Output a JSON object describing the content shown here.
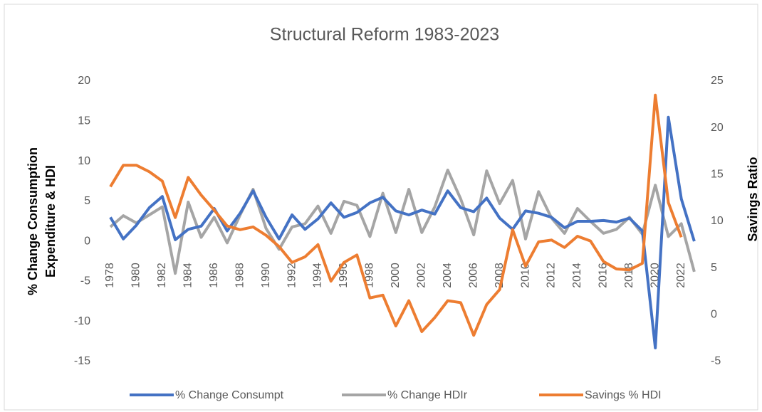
{
  "chart_data": {
    "type": "line",
    "title": "Structural Reform 1983-2023",
    "ylabel": [
      "% Change  Consumption",
      "Expenditure & HDI"
    ],
    "y2label": "Savings Ratio",
    "categories": [
      "1978",
      null,
      "1980",
      null,
      "1982",
      null,
      "1984",
      null,
      "1986",
      null,
      "1988",
      null,
      "1990",
      null,
      "1992",
      null,
      "1994",
      null,
      "1996",
      null,
      "1998",
      null,
      "2000",
      null,
      "2002",
      null,
      "2004",
      null,
      "2006",
      null,
      "2008",
      null,
      "2010",
      null,
      "2012",
      null,
      "2014",
      null,
      "2016",
      null,
      "2018",
      null,
      "2020",
      null,
      "2022",
      null
    ],
    "series": [
      {
        "name": "% Change Consumpt",
        "color": "#4472c4",
        "values": [
          3.0,
          0.3,
          2.0,
          4.2,
          5.6,
          0.2,
          1.5,
          1.9,
          4.1,
          1.3,
          3.5,
          6.3,
          3.0,
          0.3,
          3.3,
          1.5,
          2.8,
          4.8,
          3.0,
          3.6,
          4.8,
          5.5,
          3.8,
          3.3,
          3.9,
          3.4,
          6.3,
          4.2,
          3.7,
          5.4,
          2.9,
          1.5,
          3.8,
          3.5,
          3.0,
          1.7,
          2.5,
          2.5,
          2.6,
          2.4,
          2.9,
          1.3,
          -13.3,
          15.5,
          5.3,
          0.0
        ]
      },
      {
        "name": "% Change HDIr",
        "color": "#a5a5a5",
        "values": [
          1.8,
          3.2,
          2.3,
          3.3,
          4.3,
          -4.0,
          4.9,
          0.5,
          3.0,
          -0.2,
          3.3,
          6.5,
          1.6,
          -1.0,
          1.8,
          2.2,
          4.4,
          1.0,
          5.0,
          4.5,
          0.6,
          6.0,
          1.1,
          6.5,
          1.1,
          4.3,
          8.9,
          5.3,
          0.8,
          8.8,
          4.7,
          7.6,
          0.3,
          6.2,
          2.9,
          1.0,
          4.1,
          2.5,
          1.0,
          1.5,
          3.0,
          0.9,
          7.0,
          0.6,
          2.2,
          -3.8
        ]
      },
      {
        "name": "Savings % HDI",
        "color": "#ed7d31",
        "axis": "y2",
        "values": [
          13.7,
          16.0,
          16.0,
          15.3,
          14.3,
          10.4,
          14.7,
          12.8,
          11.2,
          9.5,
          9.1,
          9.4,
          8.5,
          7.3,
          5.6,
          6.2,
          7.5,
          3.6,
          5.6,
          6.4,
          1.8,
          2.1,
          -1.2,
          1.5,
          -1.8,
          -0.3,
          1.5,
          1.3,
          -2.2,
          1.1,
          2.7,
          9.1,
          5.2,
          7.8,
          8.0,
          7.2,
          8.4,
          7.9,
          5.7,
          4.9,
          4.8,
          5.5,
          23.5,
          12.0,
          8.3,
          null
        ]
      }
    ],
    "ylim": [
      -15,
      20
    ],
    "yticks": [
      -15,
      -10,
      -5,
      0,
      5,
      10,
      15,
      20
    ],
    "y2lim": [
      -5,
      25
    ],
    "y2ticks": [
      -5,
      0,
      5,
      10,
      15,
      20,
      25
    ],
    "legend": "bottom"
  }
}
